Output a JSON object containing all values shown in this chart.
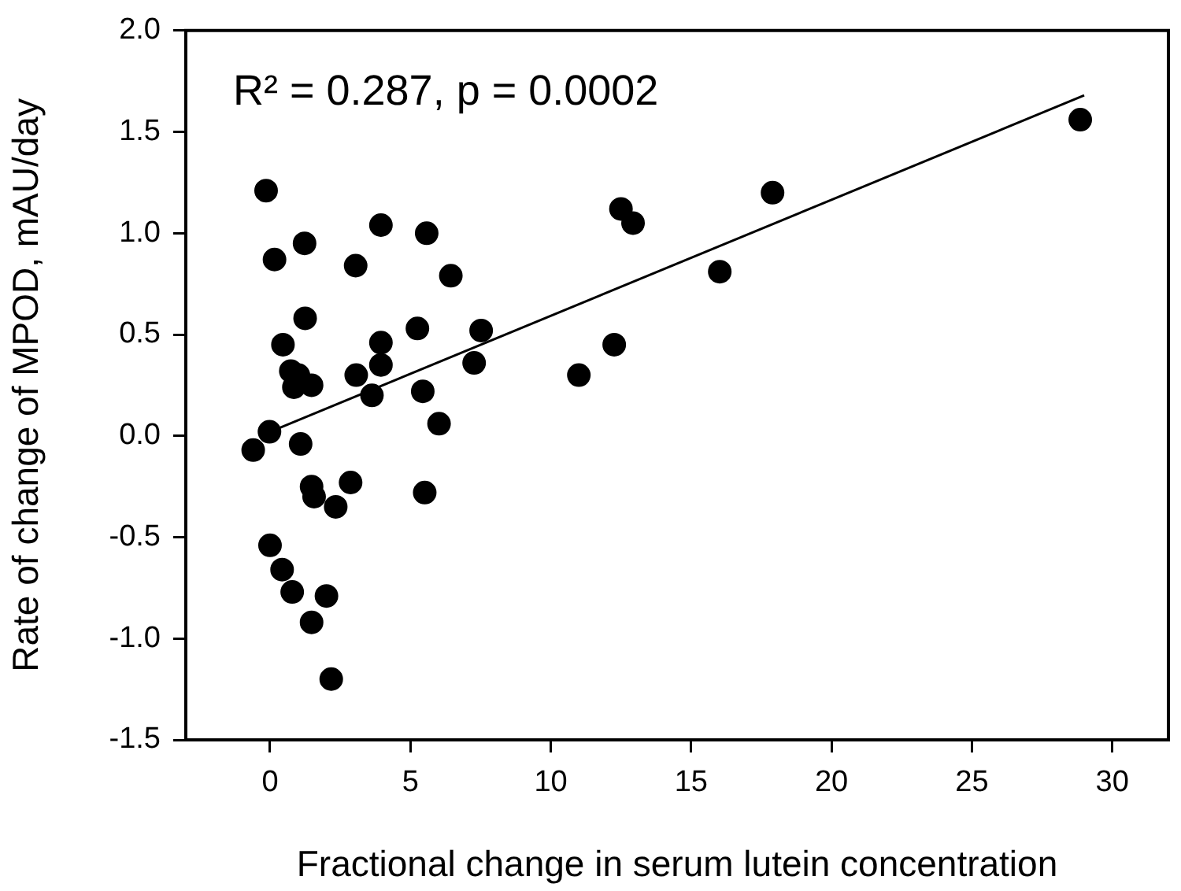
{
  "chart_data": {
    "type": "scatter",
    "xlabel": "Fractional change in serum lutein concentration",
    "ylabel": "Rate of change of MPOD, mAU/day",
    "annotations": [
      "R² = 0.287, p = 0.0002"
    ],
    "xlim": [
      -3,
      32
    ],
    "xticks": [
      0,
      5,
      10,
      15,
      20,
      25,
      30
    ],
    "ylim": [
      -1.5,
      2.0
    ],
    "yticks": [
      {
        "value": -1.5,
        "label": "-1.5"
      },
      {
        "value": -1,
        "label": "-1.0"
      },
      {
        "value": -0.5,
        "label": "-0.5"
      },
      {
        "value": 0,
        "label": "0.0"
      },
      {
        "value": 0.5,
        "label": "0.5"
      },
      {
        "value": 1,
        "label": "1.0"
      },
      {
        "value": 1.5,
        "label": "1.5"
      },
      {
        "value": 2,
        "label": "2.0"
      }
    ],
    "grid": false,
    "legend": false,
    "series": [
      {
        "marker": "circle",
        "color": "#000000",
        "x": [
          -0.6,
          -0.14,
          -0.02,
          0.16,
          0.46,
          0.0,
          0.43,
          0.79,
          0.74,
          1.01,
          0.85,
          1.48,
          1.23,
          1.25,
          1.09,
          1.48,
          1.57,
          1.48,
          2.01,
          2.18,
          2.34,
          2.87,
          3.07,
          3.05,
          3.63,
          3.95,
          3.95,
          3.95,
          5.25,
          5.44,
          5.58,
          5.51,
          6.02,
          6.44,
          7.27,
          7.52,
          11.0,
          12.26,
          12.5,
          12.93,
          16.02,
          17.9,
          28.86
        ],
        "values": [
          -0.07,
          1.21,
          0.02,
          0.87,
          0.45,
          -0.54,
          -0.66,
          -0.77,
          0.32,
          0.3,
          0.24,
          0.25,
          0.95,
          0.58,
          -0.04,
          -0.25,
          -0.3,
          -0.92,
          -0.79,
          -1.2,
          -0.35,
          -0.23,
          0.3,
          0.84,
          0.2,
          1.04,
          0.46,
          0.35,
          0.53,
          0.22,
          1.0,
          -0.28,
          0.06,
          0.79,
          0.36,
          0.52,
          0.3,
          0.45,
          1.12,
          1.05,
          0.81,
          1.2,
          1.56
        ]
      },
      {
        "type": "line",
        "marker": "none",
        "line_style": "solid",
        "color": "#000000",
        "x": [
          0,
          29
        ],
        "values": [
          0.02,
          1.68
        ]
      }
    ]
  }
}
